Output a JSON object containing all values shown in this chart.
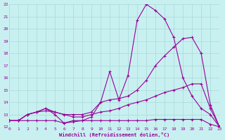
{
  "xlabel": "Windchill (Refroidissement éolien,°C)",
  "bg_color": "#c8f0f0",
  "grid_color": "#a8d8d8",
  "line_color": "#990099",
  "xlim": [
    0,
    23
  ],
  "ylim": [
    12,
    22
  ],
  "yticks": [
    12,
    13,
    14,
    15,
    16,
    17,
    18,
    19,
    20,
    21,
    22
  ],
  "xticks": [
    0,
    1,
    2,
    3,
    4,
    5,
    6,
    7,
    8,
    9,
    10,
    11,
    12,
    13,
    14,
    15,
    16,
    17,
    18,
    19,
    20,
    21,
    22,
    23
  ],
  "lines": [
    {
      "x": [
        0,
        1,
        2,
        3,
        4,
        5,
        6,
        7,
        8,
        9,
        10,
        11,
        12,
        13,
        14,
        15,
        16,
        17,
        18,
        19,
        20,
        21,
        22,
        23
      ],
      "y": [
        12.5,
        12.5,
        12.5,
        12.5,
        12.5,
        12.5,
        12.3,
        12.4,
        12.5,
        12.5,
        12.5,
        12.5,
        12.5,
        12.5,
        12.5,
        12.5,
        12.6,
        12.6,
        12.6,
        12.6,
        12.6,
        12.6,
        12.2,
        12.0
      ]
    },
    {
      "x": [
        0,
        1,
        2,
        3,
        4,
        5,
        6,
        7,
        8,
        9,
        10,
        11,
        12,
        13,
        14,
        15,
        16,
        17,
        18,
        19,
        20,
        21,
        22,
        23
      ],
      "y": [
        12.5,
        12.5,
        13.0,
        13.2,
        13.3,
        13.2,
        13.0,
        12.8,
        12.8,
        13.0,
        13.2,
        13.3,
        13.5,
        13.8,
        14.0,
        14.2,
        14.5,
        14.8,
        15.0,
        15.2,
        15.5,
        15.5,
        13.5,
        12.0
      ]
    },
    {
      "x": [
        0,
        1,
        2,
        3,
        4,
        5,
        6,
        7,
        8,
        9,
        10,
        11,
        12,
        13,
        14,
        15,
        16,
        17,
        18,
        19,
        20,
        21,
        22,
        23
      ],
      "y": [
        12.5,
        12.5,
        13.0,
        13.2,
        13.5,
        13.2,
        13.0,
        13.0,
        13.0,
        13.2,
        14.0,
        14.2,
        14.3,
        14.5,
        15.0,
        15.8,
        17.0,
        17.8,
        18.5,
        19.2,
        19.3,
        18.0,
        13.8,
        12.0
      ]
    },
    {
      "x": [
        0,
        1,
        2,
        3,
        4,
        5,
        6,
        7,
        8,
        9,
        10,
        11,
        12,
        13,
        14,
        15,
        16,
        17,
        18,
        19,
        20,
        21,
        22,
        23
      ],
      "y": [
        12.5,
        12.5,
        13.0,
        13.2,
        13.5,
        13.0,
        12.3,
        12.5,
        12.5,
        12.8,
        14.0,
        16.5,
        14.2,
        16.2,
        20.7,
        22.0,
        21.5,
        20.8,
        19.3,
        16.0,
        14.5,
        13.5,
        13.0,
        12.0
      ]
    }
  ]
}
